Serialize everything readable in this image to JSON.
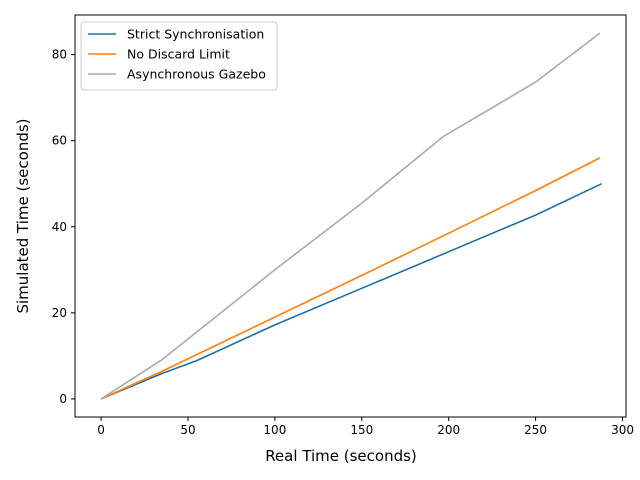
{
  "chart_data": {
    "type": "line",
    "xlabel": "Real Time (seconds)",
    "ylabel": "Simulated Time (seconds)",
    "xlim": [
      -15,
      302
    ],
    "ylim": [
      -4.2,
      89.2
    ],
    "xticks": [
      0,
      50,
      100,
      150,
      200,
      250,
      300
    ],
    "yticks": [
      0,
      20,
      40,
      60,
      80
    ],
    "grid": false,
    "legend_position": "top-left",
    "series": [
      {
        "name": "Strict Synchronisation",
        "color": "#1f6fa8",
        "points": [
          [
            0,
            0
          ],
          [
            35,
            5.9
          ],
          [
            55,
            8.9
          ],
          [
            100,
            17.2
          ],
          [
            150,
            25.7
          ],
          [
            200,
            34.2
          ],
          [
            250,
            42.7
          ],
          [
            288,
            50
          ]
        ]
      },
      {
        "name": "No Discard Limit",
        "color": "#ff7f0e",
        "points": [
          [
            0,
            0
          ],
          [
            35,
            6.4
          ],
          [
            100,
            19.0
          ],
          [
            150,
            28.7
          ],
          [
            200,
            38.5
          ],
          [
            250,
            48.4
          ],
          [
            287,
            56
          ]
        ]
      },
      {
        "name": "Asynchronous Gazebo",
        "color": "#aaaaaa",
        "points": [
          [
            0,
            0
          ],
          [
            35,
            9.1
          ],
          [
            100,
            30.0
          ],
          [
            150,
            45.5
          ],
          [
            197,
            61.0
          ],
          [
            250,
            73.6
          ],
          [
            287,
            85
          ]
        ]
      }
    ]
  }
}
